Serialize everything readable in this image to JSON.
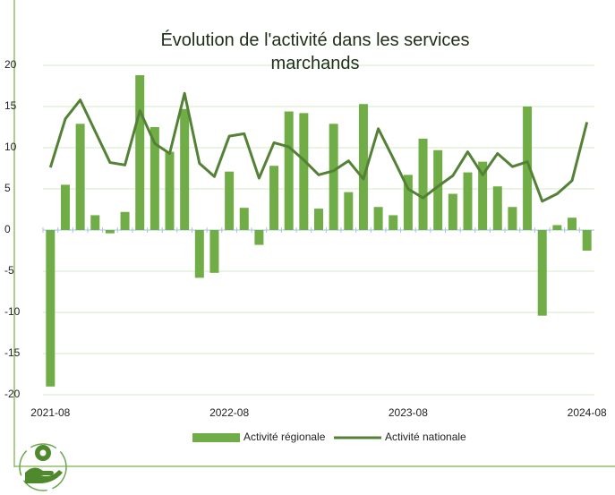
{
  "chart_data": {
    "type": "bar_line",
    "title": "Évolution de l'activité dans les services marchands",
    "categories": [
      "2021-08",
      null,
      null,
      null,
      null,
      null,
      null,
      null,
      null,
      null,
      null,
      null,
      "2022-08",
      null,
      null,
      null,
      null,
      null,
      null,
      null,
      null,
      null,
      null,
      null,
      "2023-08",
      null,
      null,
      null,
      null,
      null,
      null,
      null,
      null,
      null,
      null,
      null,
      "2024-08"
    ],
    "series": [
      {
        "name": "Activité régionale",
        "type": "bar",
        "color": "#70ad47",
        "values": [
          -19,
          5.5,
          12.9,
          1.8,
          -0.4,
          2.2,
          18.8,
          12.5,
          9.5,
          14.7,
          -5.8,
          -5.2,
          7.1,
          2.7,
          -1.8,
          7.8,
          14.4,
          14.2,
          2.6,
          12.9,
          4.6,
          15.3,
          2.8,
          1.8,
          6.7,
          11.1,
          9.7,
          4.4,
          7.0,
          8.3,
          5.3,
          2.8,
          15.0,
          -10.4,
          0.6,
          1.5,
          -2.5
        ]
      },
      {
        "name": "Activité nationale",
        "type": "line",
        "color": "#538135",
        "values": [
          7.6,
          13.5,
          15.8,
          12.0,
          8.2,
          7.9,
          14.5,
          10.5,
          9.3,
          16.6,
          8.1,
          6.5,
          11.4,
          11.7,
          6.3,
          10.6,
          10.1,
          8.5,
          6.7,
          7.2,
          8.4,
          6.2,
          12.3,
          8.7,
          5.0,
          3.9,
          5.3,
          6.6,
          9.5,
          6.7,
          9.3,
          7.7,
          8.3,
          3.5,
          4.4,
          6.0,
          13.1
        ]
      }
    ],
    "ylim": [
      -20,
      20
    ],
    "yticks": [
      -20,
      -15,
      -10,
      -5,
      0,
      5,
      10,
      15,
      20
    ],
    "grid": true,
    "legend": "bottom"
  }
}
